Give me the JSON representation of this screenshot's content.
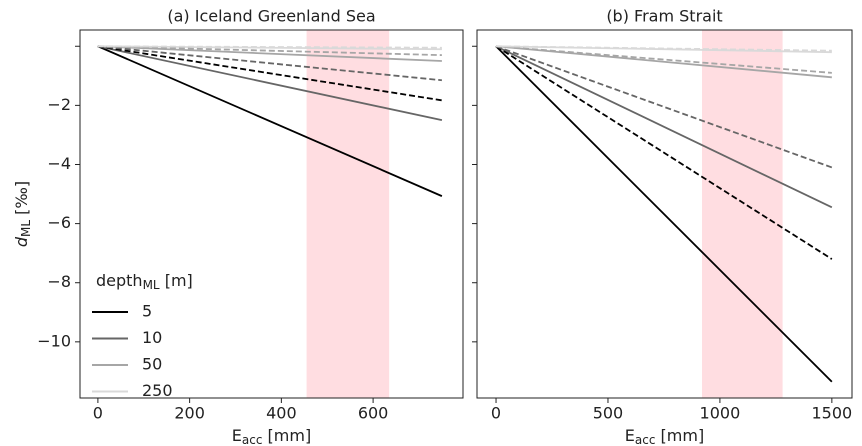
{
  "chart_data": [
    {
      "type": "line",
      "title": "(a) Iceland Greenland Sea",
      "x": [
        0,
        750
      ],
      "xlim": [
        -39,
        796
      ],
      "xticks": [
        0,
        200,
        400,
        600
      ],
      "ylim": [
        -11.9,
        0.55
      ],
      "yticks": [
        {
          "value": -10,
          "label": "−10"
        },
        {
          "value": -8,
          "label": "−8"
        },
        {
          "value": -6,
          "label": "−6"
        },
        {
          "value": -4,
          "label": "−4"
        },
        {
          "value": -2,
          "label": "−2"
        },
        0
      ],
      "xlabel": {
        "main": "E",
        "sub": "acc",
        "unit": " [mm]"
      },
      "ylabel": {
        "main": "d",
        "sub": "ML",
        "unit": " [‰]"
      },
      "legend_title": {
        "main": "depth",
        "sub": "ML",
        "unit": " [m]"
      },
      "legend": "lower left",
      "shade": [
        455,
        635
      ],
      "shade_color": "#ffdde1",
      "series": [
        {
          "name": "5",
          "color": "#000000",
          "dash": false,
          "values": [
            0,
            -5.07
          ]
        },
        {
          "name": "10",
          "color": "#666666",
          "dash": false,
          "values": [
            0,
            -2.5
          ]
        },
        {
          "name": "50",
          "color": "#a6a6a6",
          "dash": false,
          "values": [
            0,
            -0.5
          ]
        },
        {
          "name": "250",
          "color": "#d9d9d9",
          "dash": false,
          "values": [
            0,
            -0.1
          ]
        },
        {
          "color": "#000000",
          "dash": true,
          "values": [
            0,
            -1.83
          ]
        },
        {
          "color": "#666666",
          "dash": true,
          "values": [
            0,
            -1.15
          ]
        },
        {
          "color": "#a6a6a6",
          "dash": true,
          "values": [
            0,
            -0.3
          ]
        },
        {
          "color": "#d9d9d9",
          "dash": true,
          "values": [
            0,
            -0.05
          ]
        }
      ]
    },
    {
      "type": "line",
      "title": "(b) Fram Strait",
      "x": [
        0,
        1500
      ],
      "xlim": [
        -85,
        1590
      ],
      "xticks": [
        0,
        500,
        1000,
        1500
      ],
      "ylim": [
        -11.9,
        0.55
      ],
      "yticks": [
        -10,
        -8,
        -6,
        -4,
        -2,
        0
      ],
      "xlabel": {
        "main": "E",
        "sub": "acc",
        "unit": " [mm]"
      },
      "shade": [
        920,
        1280
      ],
      "shade_color": "#ffdde1",
      "series": [
        {
          "color": "#000000",
          "dash": false,
          "values": [
            0,
            -11.35
          ]
        },
        {
          "color": "#666666",
          "dash": false,
          "values": [
            0,
            -5.45
          ]
        },
        {
          "color": "#a6a6a6",
          "dash": false,
          "values": [
            0,
            -1.05
          ]
        },
        {
          "color": "#d9d9d9",
          "dash": false,
          "values": [
            0,
            -0.2
          ]
        },
        {
          "color": "#000000",
          "dash": true,
          "values": [
            0,
            -7.2
          ]
        },
        {
          "color": "#666666",
          "dash": true,
          "values": [
            0,
            -4.1
          ]
        },
        {
          "color": "#a6a6a6",
          "dash": true,
          "values": [
            0,
            -0.9
          ]
        },
        {
          "color": "#d9d9d9",
          "dash": true,
          "values": [
            0,
            -0.15
          ]
        }
      ]
    }
  ]
}
